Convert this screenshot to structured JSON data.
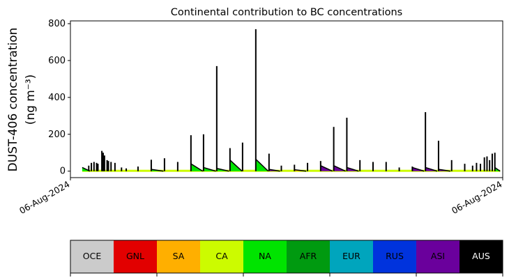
{
  "chart_data": {
    "type": "area",
    "title": "Continental contribution to BC concentrations",
    "ylabel_line1": "DUST-406 concentration",
    "ylabel_line2": "(ng m⁻³)",
    "xlabel": "",
    "ylim": [
      -35,
      815
    ],
    "xlim": [
      0,
      33
    ],
    "yticks": [
      0,
      200,
      400,
      600,
      800
    ],
    "xtick_labels": [
      "06-Aug-2024",
      "06-Aug-2024"
    ],
    "grid": false,
    "spikes": [
      [
        1.4,
        30
      ],
      [
        1.6,
        45
      ],
      [
        1.8,
        50
      ],
      [
        2.0,
        45
      ],
      [
        2.1,
        40
      ],
      [
        2.4,
        110
      ],
      [
        2.5,
        100
      ],
      [
        2.6,
        85
      ],
      [
        2.8,
        60
      ],
      [
        2.9,
        55
      ],
      [
        3.1,
        50
      ],
      [
        3.4,
        45
      ],
      [
        3.9,
        20
      ],
      [
        4.26,
        15
      ],
      [
        5.16,
        25
      ],
      [
        6.17,
        62
      ],
      [
        7.18,
        70
      ],
      [
        8.19,
        50
      ],
      [
        9.2,
        195
      ],
      [
        10.16,
        200
      ],
      [
        11.17,
        570
      ],
      [
        12.18,
        125
      ],
      [
        13.14,
        155
      ],
      [
        14.15,
        770
      ],
      [
        15.16,
        95
      ],
      [
        16.1,
        30
      ],
      [
        17.1,
        35
      ],
      [
        18.1,
        45
      ],
      [
        19.1,
        55
      ],
      [
        20.1,
        240
      ],
      [
        21.1,
        290
      ],
      [
        22.1,
        60
      ],
      [
        23.1,
        50
      ],
      [
        24.1,
        50
      ],
      [
        25.1,
        20
      ],
      [
        26.1,
        25
      ],
      [
        27.1,
        320
      ],
      [
        28.1,
        165
      ],
      [
        29.1,
        60
      ],
      [
        30.1,
        40
      ],
      [
        30.7,
        30
      ],
      [
        31.0,
        45
      ],
      [
        31.3,
        40
      ],
      [
        31.6,
        75
      ],
      [
        31.8,
        80
      ],
      [
        32.0,
        60
      ],
      [
        32.2,
        95
      ],
      [
        32.4,
        100
      ]
    ],
    "areas": [
      [
        0.9,
        1.5,
        20,
        "NA"
      ],
      [
        6.17,
        7.1,
        10,
        "NA"
      ],
      [
        9.2,
        10.1,
        40,
        "NA"
      ],
      [
        10.16,
        11.1,
        20,
        "NA"
      ],
      [
        11.17,
        12.1,
        15,
        "NA"
      ],
      [
        12.18,
        13.1,
        60,
        "NA"
      ],
      [
        14.15,
        15.1,
        65,
        "NA"
      ],
      [
        15.16,
        16.0,
        10,
        "ASI"
      ],
      [
        17.1,
        18.0,
        8,
        "SA"
      ],
      [
        19.1,
        20.0,
        30,
        "ASI"
      ],
      [
        20.1,
        21.0,
        30,
        "ASI"
      ],
      [
        21.1,
        22.0,
        20,
        "ASI"
      ],
      [
        26.1,
        27.0,
        20,
        "ASI"
      ],
      [
        27.1,
        28.0,
        20,
        "ASI"
      ],
      [
        28.1,
        29.0,
        10,
        "ASI"
      ],
      [
        32.4,
        32.8,
        20,
        "NA"
      ]
    ],
    "legend": {
      "placement": "bottom",
      "regions": [
        {
          "label": "OCE",
          "color": "#cbcbcb",
          "text": "#000000"
        },
        {
          "label": "GNL",
          "color": "#e20000",
          "text": "#000000"
        },
        {
          "label": "SA",
          "color": "#ffaf00",
          "text": "#000000"
        },
        {
          "label": "CA",
          "color": "#ccfb00",
          "text": "#000000"
        },
        {
          "label": "NA",
          "color": "#00e400",
          "text": "#000000"
        },
        {
          "label": "AFR",
          "color": "#009a10",
          "text": "#000000"
        },
        {
          "label": "EUR",
          "color": "#00a5bd",
          "text": "#000000"
        },
        {
          "label": "RUS",
          "color": "#0033dd",
          "text": "#000000"
        },
        {
          "label": "ASI",
          "color": "#6a009c",
          "text": "#000000"
        },
        {
          "label": "AUS",
          "color": "#000000",
          "text": "#ffffff"
        }
      ]
    }
  }
}
